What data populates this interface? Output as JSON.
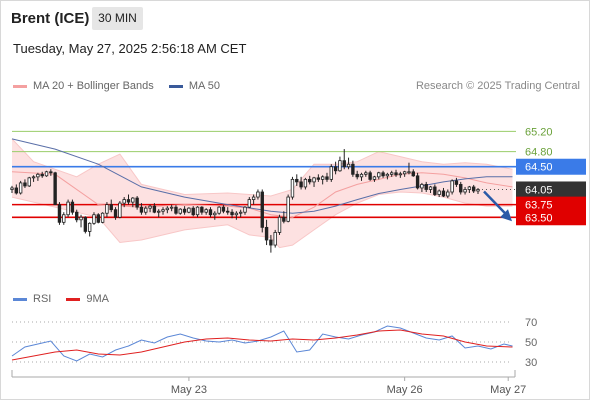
{
  "header": {
    "instrument": "Brent (ICE)",
    "timeframe": "30 MIN",
    "datetime": "Tuesday, May 27, 2025 2:56:18 AM CET"
  },
  "credit": "Research © 2025 Trading Central",
  "price_legend": [
    {
      "label": "MA 20 + Bollinger Bands",
      "color": "#f4a0a0"
    },
    {
      "label": "MA 50",
      "color": "#3a5a9a"
    }
  ],
  "rsi_legend": [
    {
      "label": "RSI",
      "color": "#5b87d6"
    },
    {
      "label": "9MA",
      "color": "#e02020"
    }
  ],
  "colors": {
    "bullish": "#222222",
    "bearish": "#222222",
    "band_fill": "#fde1e1",
    "ma20": "#f4a0a0",
    "ma50": "#5a6fa8",
    "support": "#e00000",
    "resistance_primary": "#3a7be8",
    "resistance_secondary": "#9acd6a",
    "forecast_arrow": "#2a5aa8"
  },
  "chart_data": [
    {
      "type": "candlestick",
      "title": "",
      "y_axis_side": "right",
      "ylim": [
        62.1,
        65.9
      ],
      "x_ticks": [
        {
          "label": "May 23",
          "bar": 41
        },
        {
          "label": "May 26",
          "bar": 91
        },
        {
          "label": "May 27",
          "bar": 115
        }
      ],
      "levels": [
        {
          "value": 65.2,
          "label": "65.20",
          "kind": "resistance"
        },
        {
          "value": 64.8,
          "label": "64.80",
          "kind": "resistance"
        },
        {
          "value": 64.5,
          "label": "64.50",
          "kind": "pivot"
        },
        {
          "value": 64.05,
          "label": "64.05",
          "kind": "last"
        },
        {
          "value": 63.75,
          "label": "63.75",
          "kind": "support"
        },
        {
          "value": 63.5,
          "label": "63.50",
          "kind": "support"
        }
      ],
      "forecast": {
        "from": 64.05,
        "to": 63.5,
        "direction": "down"
      },
      "ma50": [
        [
          0,
          65.05
        ],
        [
          10,
          64.85
        ],
        [
          20,
          64.55
        ],
        [
          30,
          64.1
        ],
        [
          40,
          63.9
        ],
        [
          50,
          63.75
        ],
        [
          60,
          63.62
        ],
        [
          65,
          63.58
        ],
        [
          70,
          63.62
        ],
        [
          75,
          63.72
        ],
        [
          80,
          63.85
        ],
        [
          85,
          63.97
        ],
        [
          90,
          64.05
        ],
        [
          95,
          64.12
        ],
        [
          100,
          64.2
        ],
        [
          105,
          64.26
        ],
        [
          110,
          64.3
        ],
        [
          116,
          64.3
        ]
      ],
      "ma20": [
        [
          0,
          64.4
        ],
        [
          10,
          64.35
        ],
        [
          20,
          63.75
        ],
        [
          30,
          63.7
        ],
        [
          40,
          63.75
        ],
        [
          50,
          63.72
        ],
        [
          55,
          63.68
        ],
        [
          60,
          63.55
        ],
        [
          65,
          63.5
        ],
        [
          70,
          63.7
        ],
        [
          75,
          64.0
        ],
        [
          80,
          64.15
        ],
        [
          85,
          64.25
        ],
        [
          90,
          64.35
        ],
        [
          95,
          64.38
        ],
        [
          100,
          64.35
        ],
        [
          105,
          64.28
        ],
        [
          110,
          64.18
        ],
        [
          116,
          64.1
        ]
      ],
      "band_upper": [
        [
          0,
          65.05
        ],
        [
          5,
          64.6
        ],
        [
          15,
          64.3
        ],
        [
          20,
          64.55
        ],
        [
          25,
          64.75
        ],
        [
          30,
          64.15
        ],
        [
          40,
          63.95
        ],
        [
          50,
          63.98
        ],
        [
          60,
          63.92
        ],
        [
          65,
          64.05
        ],
        [
          70,
          64.55
        ],
        [
          75,
          64.55
        ],
        [
          80,
          64.6
        ],
        [
          85,
          64.8
        ],
        [
          90,
          64.7
        ],
        [
          95,
          64.6
        ],
        [
          100,
          64.55
        ],
        [
          105,
          64.58
        ],
        [
          110,
          64.55
        ],
        [
          116,
          64.45
        ]
      ],
      "band_lower": [
        [
          0,
          63.9
        ],
        [
          10,
          63.7
        ],
        [
          20,
          63.5
        ],
        [
          25,
          63.0
        ],
        [
          30,
          63.05
        ],
        [
          40,
          63.25
        ],
        [
          50,
          63.35
        ],
        [
          55,
          63.15
        ],
        [
          60,
          63.1
        ],
        [
          62,
          62.9
        ],
        [
          65,
          62.95
        ],
        [
          70,
          63.25
        ],
        [
          75,
          63.55
        ],
        [
          80,
          63.78
        ],
        [
          85,
          63.95
        ],
        [
          90,
          64.0
        ],
        [
          95,
          63.98
        ],
        [
          100,
          63.9
        ],
        [
          105,
          63.78
        ],
        [
          110,
          63.72
        ],
        [
          116,
          63.72
        ]
      ],
      "candles": [
        [
          64.05,
          64.12,
          63.98,
          64.08
        ],
        [
          64.08,
          64.15,
          63.95,
          63.98
        ],
        [
          63.98,
          64.22,
          63.95,
          64.18
        ],
        [
          64.18,
          64.25,
          64.08,
          64.12
        ],
        [
          64.12,
          64.3,
          64.1,
          64.28
        ],
        [
          64.28,
          64.33,
          64.2,
          64.3
        ],
        [
          64.3,
          64.38,
          64.22,
          64.35
        ],
        [
          64.35,
          64.4,
          64.28,
          64.32
        ],
        [
          64.32,
          64.42,
          64.3,
          64.4
        ],
        [
          64.4,
          64.45,
          64.32,
          64.38
        ],
        [
          64.38,
          64.4,
          63.75,
          63.75
        ],
        [
          63.75,
          63.8,
          63.35,
          63.4
        ],
        [
          63.4,
          63.6,
          63.35,
          63.55
        ],
        [
          63.55,
          63.85,
          63.5,
          63.8
        ],
        [
          63.8,
          63.85,
          63.55,
          63.6
        ],
        [
          63.6,
          63.65,
          63.4,
          63.45
        ],
        [
          63.45,
          63.55,
          63.3,
          63.5
        ],
        [
          63.5,
          63.52,
          63.18,
          63.22
        ],
        [
          63.22,
          63.4,
          63.12,
          63.38
        ],
        [
          63.38,
          63.6,
          63.35,
          63.55
        ],
        [
          63.55,
          63.58,
          63.38,
          63.4
        ],
        [
          63.4,
          63.6,
          63.38,
          63.58
        ],
        [
          63.58,
          63.8,
          63.5,
          63.75
        ],
        [
          63.75,
          63.85,
          63.6,
          63.65
        ],
        [
          63.65,
          63.7,
          63.45,
          63.5
        ],
        [
          63.5,
          63.82,
          63.48,
          63.78
        ],
        [
          63.78,
          63.9,
          63.7,
          63.85
        ],
        [
          63.85,
          63.95,
          63.75,
          63.8
        ],
        [
          63.8,
          63.9,
          63.7,
          63.88
        ],
        [
          63.88,
          63.92,
          63.65,
          63.7
        ],
        [
          63.7,
          63.78,
          63.55,
          63.6
        ],
        [
          63.6,
          63.72,
          63.55,
          63.68
        ],
        [
          63.68,
          63.75,
          63.6,
          63.72
        ],
        [
          63.72,
          63.78,
          63.58,
          63.6
        ],
        [
          63.6,
          63.66,
          63.5,
          63.62
        ],
        [
          63.62,
          63.7,
          63.55,
          63.65
        ],
        [
          63.65,
          63.72,
          63.58,
          63.68
        ],
        [
          63.68,
          63.75,
          63.62,
          63.7
        ],
        [
          63.7,
          63.74,
          63.55,
          63.58
        ],
        [
          63.58,
          63.68,
          63.55,
          63.66
        ],
        [
          63.66,
          63.72,
          63.55,
          63.6
        ],
        [
          63.6,
          63.7,
          63.58,
          63.68
        ],
        [
          63.68,
          63.72,
          63.52,
          63.55
        ],
        [
          63.55,
          63.72,
          63.5,
          63.7
        ],
        [
          63.7,
          63.72,
          63.55,
          63.6
        ],
        [
          63.6,
          63.68,
          63.55,
          63.65
        ],
        [
          63.65,
          63.7,
          63.5,
          63.55
        ],
        [
          63.55,
          63.62,
          63.45,
          63.58
        ],
        [
          63.58,
          63.72,
          63.55,
          63.7
        ],
        [
          63.7,
          63.74,
          63.58,
          63.62
        ],
        [
          63.62,
          63.7,
          63.55,
          63.6
        ],
        [
          63.6,
          63.66,
          63.48,
          63.55
        ],
        [
          63.55,
          63.62,
          63.45,
          63.58
        ],
        [
          63.58,
          63.65,
          63.5,
          63.6
        ],
        [
          63.6,
          63.72,
          63.55,
          63.7
        ],
        [
          63.7,
          63.9,
          63.68,
          63.85
        ],
        [
          63.85,
          63.95,
          63.75,
          63.9
        ],
        [
          63.9,
          64.05,
          63.85,
          64.0
        ],
        [
          64.0,
          64.05,
          63.2,
          63.3
        ],
        [
          63.3,
          63.45,
          62.95,
          63.05
        ],
        [
          63.05,
          63.15,
          62.8,
          62.95
        ],
        [
          62.95,
          63.25,
          62.9,
          63.2
        ],
        [
          63.2,
          63.55,
          63.15,
          63.5
        ],
        [
          63.5,
          63.62,
          63.38,
          63.42
        ],
        [
          63.42,
          63.95,
          63.4,
          63.9
        ],
        [
          63.9,
          64.3,
          63.85,
          64.25
        ],
        [
          64.25,
          64.35,
          64.12,
          64.2
        ],
        [
          64.2,
          64.3,
          64.05,
          64.1
        ],
        [
          64.1,
          64.28,
          64.05,
          64.25
        ],
        [
          64.25,
          64.32,
          64.15,
          64.2
        ],
        [
          64.2,
          64.3,
          64.1,
          64.28
        ],
        [
          64.28,
          64.35,
          64.2,
          64.25
        ],
        [
          64.25,
          64.33,
          64.15,
          64.3
        ],
        [
          64.3,
          64.38,
          64.2,
          64.25
        ],
        [
          64.25,
          64.55,
          64.2,
          64.5
        ],
        [
          64.5,
          64.6,
          64.35,
          64.42
        ],
        [
          64.42,
          64.7,
          64.4,
          64.62
        ],
        [
          64.62,
          64.85,
          64.45,
          64.5
        ],
        [
          64.5,
          64.68,
          64.45,
          64.55
        ],
        [
          64.55,
          64.62,
          64.3,
          64.35
        ],
        [
          64.35,
          64.42,
          64.25,
          64.3
        ],
        [
          64.3,
          64.38,
          64.22,
          64.35
        ],
        [
          64.35,
          64.42,
          64.3,
          64.38
        ],
        [
          64.38,
          64.42,
          64.22,
          64.25
        ],
        [
          64.25,
          64.32,
          64.2,
          64.3
        ],
        [
          64.3,
          64.4,
          64.25,
          64.38
        ],
        [
          64.38,
          64.42,
          64.28,
          64.32
        ],
        [
          64.32,
          64.38,
          64.25,
          64.35
        ],
        [
          64.35,
          64.42,
          64.3,
          64.38
        ],
        [
          64.38,
          64.44,
          64.3,
          64.34
        ],
        [
          64.34,
          64.4,
          64.28,
          64.36
        ],
        [
          64.36,
          64.42,
          64.3,
          64.4
        ],
        [
          64.4,
          64.58,
          64.35,
          64.4
        ],
        [
          64.4,
          64.45,
          64.3,
          64.32
        ],
        [
          64.32,
          64.38,
          64.05,
          64.08
        ],
        [
          64.08,
          64.18,
          64.0,
          64.15
        ],
        [
          64.15,
          64.2,
          64.0,
          64.05
        ],
        [
          64.05,
          64.12,
          63.98,
          64.1
        ],
        [
          64.1,
          64.15,
          63.92,
          63.95
        ],
        [
          63.95,
          64.05,
          63.9,
          64.02
        ],
        [
          64.02,
          64.08,
          63.9,
          63.92
        ],
        [
          63.92,
          64.05,
          63.88,
          64.0
        ],
        [
          64.0,
          64.25,
          63.95,
          64.22
        ],
        [
          64.22,
          64.28,
          64.1,
          64.15
        ],
        [
          64.15,
          64.2,
          63.95,
          64.0
        ],
        [
          64.0,
          64.1,
          63.95,
          64.05
        ],
        [
          64.05,
          64.12,
          63.98,
          64.1
        ],
        [
          64.1,
          64.14,
          63.98,
          64.02
        ],
        [
          64.02,
          64.08,
          63.96,
          64.05
        ]
      ]
    },
    {
      "type": "line",
      "title": "",
      "ylim": [
        20,
        80
      ],
      "y_ticks": [
        70,
        50,
        30
      ],
      "dotted_lines": [
        70,
        50,
        30
      ],
      "series": [
        {
          "name": "RSI",
          "x": [
            0,
            3,
            6,
            9,
            12,
            15,
            18,
            21,
            24,
            27,
            30,
            33,
            36,
            39,
            42,
            45,
            48,
            51,
            54,
            57,
            60,
            63,
            66,
            69,
            72,
            75,
            78,
            81,
            84,
            87,
            90,
            93,
            96,
            99,
            102,
            105,
            108,
            111,
            114,
            116
          ],
          "values": [
            36,
            45,
            48,
            51,
            36,
            31,
            38,
            35,
            42,
            46,
            52,
            49,
            55,
            58,
            54,
            51,
            50,
            52,
            49,
            51,
            55,
            61,
            40,
            42,
            58,
            55,
            53,
            57,
            60,
            66,
            64,
            59,
            54,
            52,
            56,
            44,
            46,
            43,
            48,
            46
          ]
        },
        {
          "name": "9MA",
          "x": [
            0,
            5,
            10,
            15,
            20,
            25,
            30,
            35,
            40,
            45,
            50,
            55,
            60,
            65,
            70,
            75,
            80,
            85,
            90,
            95,
            100,
            105,
            110,
            116
          ],
          "values": [
            32,
            36,
            40,
            42,
            38,
            37,
            40,
            45,
            50,
            53,
            54,
            52,
            51,
            53,
            52,
            54,
            57,
            61,
            62,
            58,
            56,
            50,
            46,
            45
          ]
        }
      ]
    }
  ]
}
